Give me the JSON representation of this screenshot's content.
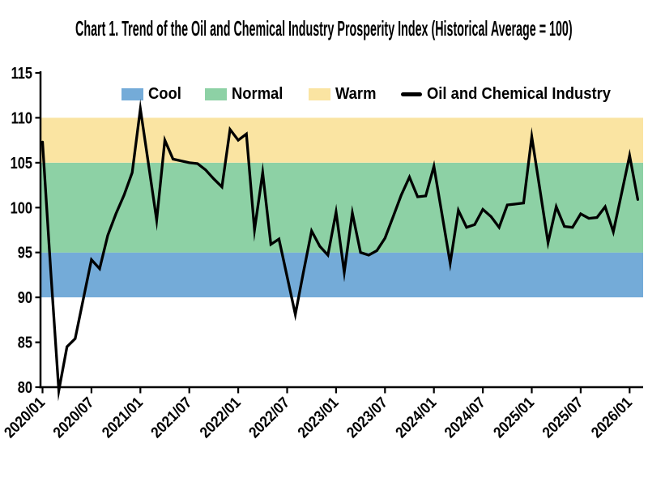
{
  "chart": {
    "title": "Chart 1. Trend of the Oil and Chemical Industry Prosperity Index (Historical Average = 100)"
  },
  "legend": {
    "items": [
      {
        "label": "Cool",
        "type": "band",
        "color": "#74ABD8"
      },
      {
        "label": "Normal",
        "type": "band",
        "color": "#8DD1A5"
      },
      {
        "label": "Warm",
        "type": "band",
        "color": "#FAE4A2"
      },
      {
        "label": "Oil and Chemical Industry",
        "type": "line",
        "color": "#000000"
      }
    ]
  },
  "chart_data": {
    "type": "line",
    "title": "Chart 1. Trend of the Oil and Chemical Industry Prosperity Index (Historical Average = 100)",
    "frequency": "monthly",
    "x_start": "2020/01",
    "x_end": "2026/02",
    "x_tick_labels": [
      "2020/01",
      "2020/07",
      "2021/01",
      "2021/07",
      "2022/01",
      "2022/07",
      "2023/01",
      "2023/07",
      "2024/01",
      "2024/07",
      "2025/01",
      "2025/07",
      "2026/01"
    ],
    "y_ticks": [
      115,
      110,
      105,
      100,
      95,
      90,
      85,
      80
    ],
    "ylim": [
      80,
      115
    ],
    "grid": false,
    "legend_position": "top",
    "bands": [
      {
        "label": "Cool",
        "from": 90,
        "to": 95,
        "color": "#74ABD8"
      },
      {
        "label": "Normal",
        "from": 95,
        "to": 105,
        "color": "#8DD1A5"
      },
      {
        "label": "Warm",
        "from": 105,
        "to": 110,
        "color": "#FAE4A2"
      }
    ],
    "series": [
      {
        "name": "Oil and Chemical Industry",
        "color": "#000000",
        "values": [
          107.3,
          93.0,
          79.6,
          84.5,
          85.4,
          89.8,
          94.2,
          93.2,
          96.9,
          99.3,
          101.4,
          103.9,
          111.0,
          104.8,
          98.6,
          107.5,
          105.4,
          105.2,
          105.0,
          104.9,
          104.2,
          103.2,
          102.3,
          108.7,
          107.5,
          108.2,
          97.5,
          103.9,
          95.9,
          96.5,
          92.3,
          88.1,
          92.8,
          97.4,
          95.7,
          94.7,
          99.5,
          92.8,
          99.4,
          95.0,
          94.7,
          95.2,
          96.6,
          99.0,
          101.4,
          103.4,
          101.2,
          101.3,
          104.6,
          99.2,
          93.8,
          99.7,
          97.8,
          98.1,
          99.8,
          99.0,
          97.8,
          100.3,
          100.4,
          100.5,
          107.9,
          102.0,
          96.1,
          100.1,
          97.9,
          97.8,
          99.3,
          98.8,
          98.9,
          100.1,
          97.3,
          101.5,
          105.8,
          100.9
        ]
      }
    ]
  }
}
